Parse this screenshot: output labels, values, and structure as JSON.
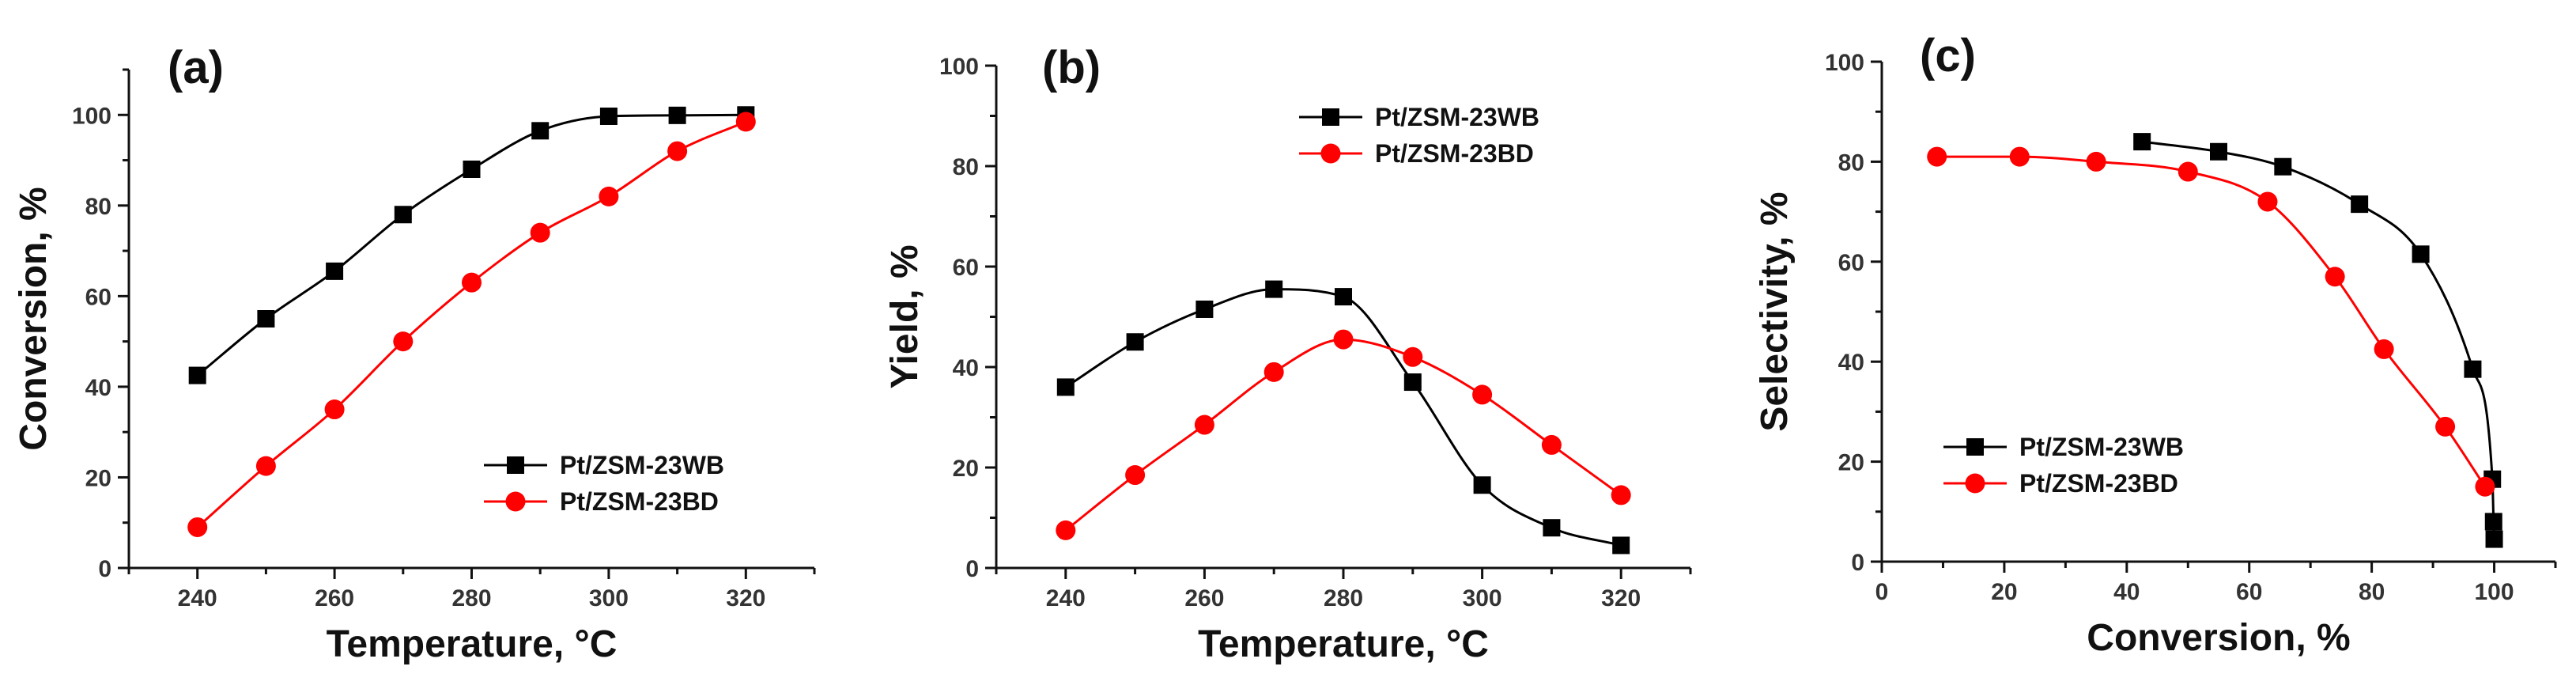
{
  "chart_data": [
    {
      "type": "line",
      "panel_label": "(a)",
      "xlabel": "Temperature, °C",
      "ylabel": "Conversion, %",
      "xlim": [
        230,
        330
      ],
      "ylim": [
        0,
        110
      ],
      "xticks": [
        240,
        260,
        280,
        300,
        320
      ],
      "yticks": [
        0,
        20,
        40,
        60,
        80,
        100
      ],
      "legend_position": "bottom-right",
      "series": [
        {
          "name": "Pt/ZSM-23WB",
          "color": "#000000",
          "marker": "square",
          "x": [
            240,
            250,
            260,
            270,
            280,
            290,
            300,
            310,
            320
          ],
          "y": [
            42.5,
            55,
            65.5,
            78,
            88,
            96.5,
            99.7,
            99.9,
            100
          ]
        },
        {
          "name": "Pt/ZSM-23BD",
          "color": "#ff0000",
          "marker": "circle",
          "x": [
            240,
            250,
            260,
            270,
            280,
            290,
            300,
            310,
            320
          ],
          "y": [
            9,
            22.5,
            35,
            50,
            63,
            74,
            82,
            92,
            98.5
          ]
        }
      ]
    },
    {
      "type": "line",
      "panel_label": "(b)",
      "xlabel": "Temperature, °C",
      "ylabel": "Yield, %",
      "xlim": [
        230,
        330
      ],
      "ylim": [
        0,
        100
      ],
      "xticks": [
        240,
        260,
        280,
        300,
        320
      ],
      "yticks": [
        0,
        20,
        40,
        60,
        80,
        100
      ],
      "legend_position": "top-right",
      "series": [
        {
          "name": "Pt/ZSM-23WB",
          "color": "#000000",
          "marker": "square",
          "x": [
            240,
            250,
            260,
            270,
            280,
            290,
            300,
            310,
            320
          ],
          "y": [
            36,
            45,
            51.5,
            55.5,
            54,
            37,
            16.5,
            8,
            4.5
          ]
        },
        {
          "name": "Pt/ZSM-23BD",
          "color": "#ff0000",
          "marker": "circle",
          "x": [
            240,
            250,
            260,
            270,
            280,
            290,
            300,
            310,
            320
          ],
          "y": [
            7.5,
            18.5,
            28.5,
            39,
            45.5,
            42,
            34.5,
            24.5,
            14.5
          ]
        }
      ]
    },
    {
      "type": "line",
      "panel_label": "(c)",
      "xlabel": "Conversion, %",
      "ylabel": "Selectivity, %",
      "xlim": [
        0,
        110
      ],
      "ylim": [
        0,
        100
      ],
      "xticks": [
        0,
        20,
        40,
        60,
        80,
        100
      ],
      "yticks": [
        0,
        20,
        40,
        60,
        80,
        100
      ],
      "legend_position": "bottom-left",
      "series": [
        {
          "name": "Pt/ZSM-23WB",
          "color": "#000000",
          "marker": "square",
          "x": [
            42.5,
            55,
            65.5,
            78,
            88,
            96.5,
            99.7,
            99.9,
            100
          ],
          "y": [
            84,
            82,
            79,
            71.5,
            61.5,
            38.5,
            16.5,
            8,
            4.5
          ]
        },
        {
          "name": "Pt/ZSM-23BD",
          "color": "#ff0000",
          "marker": "circle",
          "x": [
            9,
            22.5,
            35,
            50,
            63,
            74,
            82,
            92,
            98.5
          ],
          "y": [
            81,
            81,
            80,
            78,
            72,
            57,
            42.5,
            27,
            15
          ]
        }
      ]
    }
  ]
}
